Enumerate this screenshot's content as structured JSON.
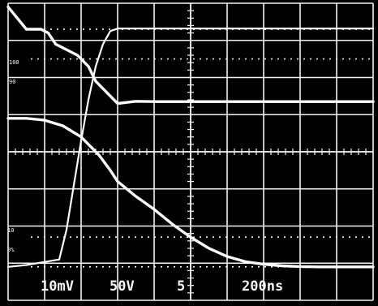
{
  "chart_data": {
    "type": "line",
    "title": "",
    "xlabel": "",
    "ylabel": "",
    "xlim": [
      0,
      10
    ],
    "ylim": [
      -4,
      4
    ],
    "grid": true,
    "level_markers": [
      "100",
      "90",
      "10",
      "0%"
    ],
    "readouts": [
      "10mV",
      "50V",
      "5",
      "200ns"
    ],
    "series": [
      {
        "x": [
          0,
          0.5,
          0.9,
          1.1,
          1.3,
          1.5,
          1.9,
          2.2,
          2.4,
          2.7,
          3.0,
          3.5,
          4,
          5,
          6,
          7,
          8,
          9,
          10
        ],
        "y": [
          3.9,
          3.3,
          3.3,
          3.2,
          2.9,
          2.8,
          2.6,
          2.3,
          1.9,
          1.6,
          1.3,
          1.36,
          1.35,
          1.35,
          1.35,
          1.35,
          1.35,
          1.35,
          1.35
        ]
      },
      {
        "x": [
          0,
          0.5,
          1.4,
          1.6,
          1.8,
          2.0,
          2.2,
          2.4,
          2.6,
          2.8,
          3.0,
          3.2,
          4,
          5,
          6,
          7,
          8,
          9,
          10
        ],
        "y": [
          -3.1,
          -3.05,
          -2.9,
          -2.1,
          -0.9,
          0.3,
          1.4,
          2.3,
          2.9,
          3.25,
          3.32,
          3.32,
          3.32,
          3.32,
          3.32,
          3.32,
          3.32,
          3.32,
          3.32
        ]
      },
      {
        "x": [
          0,
          0.5,
          1.0,
          1.5,
          2.0,
          2.5,
          2.8,
          3.0,
          3.5,
          4.0,
          4.5,
          5.0,
          5.5,
          6.0,
          6.5,
          7.0,
          7.5,
          8.0,
          8.5,
          9.0,
          9.5,
          10.0
        ],
        "y": [
          0.9,
          0.9,
          0.85,
          0.7,
          0.4,
          -0.1,
          -0.5,
          -0.8,
          -1.2,
          -1.55,
          -1.95,
          -2.3,
          -2.6,
          -2.82,
          -2.96,
          -3.03,
          -3.07,
          -3.09,
          -3.1,
          -3.1,
          -3.1,
          -3.1
        ]
      }
    ]
  }
}
